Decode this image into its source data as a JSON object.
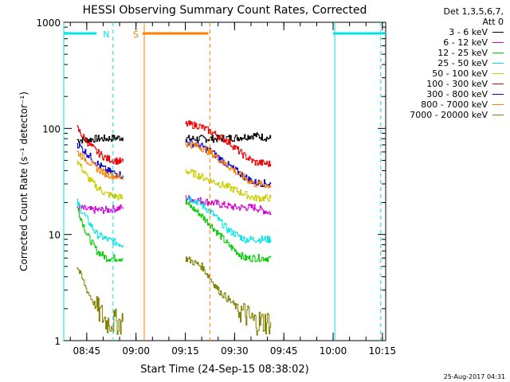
{
  "chart_data": {
    "type": "line",
    "title": "HESSI Observing Summary Count Rates, Corrected",
    "xlabel": "Start Time (24-Sep-15 08:38:02)",
    "ylabel": "Corrected Count Rate (s⁻¹ detector⁻¹)",
    "yscale": "log",
    "ylim": [
      1,
      1000
    ],
    "y_ticks": [
      "1",
      "10",
      "100",
      "1000"
    ],
    "x_range_minutes_after_08_38_02": [
      0,
      98
    ],
    "x_ticks": [
      "08:45",
      "09:00",
      "09:15",
      "09:30",
      "09:45",
      "10:00",
      "10:15"
    ],
    "x_tick_minutes": [
      7,
      22,
      37,
      52,
      67,
      82,
      97
    ],
    "legend_header": [
      "Det 1,3,5,6,7,",
      "Att 0"
    ],
    "series": [
      {
        "name": "3 - 6 keV",
        "color": "#000000",
        "segments": [
          [
            [
              4,
              78
            ],
            [
              7,
              78
            ],
            [
              10,
              80
            ],
            [
              13,
              80
            ],
            [
              18,
              82
            ]
          ],
          [
            [
              37,
              80
            ],
            [
              46,
              80
            ],
            [
              53,
              82
            ],
            [
              58,
              86
            ],
            [
              63,
              80
            ]
          ]
        ]
      },
      {
        "name": "6 - 12 keV",
        "color": "#d400d4",
        "segments": [
          [
            [
              4,
              18
            ],
            [
              8,
              17
            ],
            [
              13,
              17
            ],
            [
              18,
              18
            ]
          ],
          [
            [
              37,
              22
            ],
            [
              45,
              20
            ],
            [
              52,
              18
            ],
            [
              58,
              18
            ],
            [
              63,
              16
            ]
          ]
        ]
      },
      {
        "name": "12 - 25 keV",
        "color": "#00cc00",
        "segments": [
          [
            [
              4,
              18
            ],
            [
              7,
              10
            ],
            [
              10,
              7
            ],
            [
              13,
              6
            ],
            [
              18,
              6
            ]
          ],
          [
            [
              37,
              20
            ],
            [
              41,
              16
            ],
            [
              45,
              12
            ],
            [
              50,
              8
            ],
            [
              55,
              6
            ],
            [
              58,
              6
            ],
            [
              63,
              6
            ]
          ]
        ]
      },
      {
        "name": "25 - 50 keV",
        "color": "#00e5e5",
        "segments": [
          [
            [
              4,
              20
            ],
            [
              7,
              14
            ],
            [
              10,
              10
            ],
            [
              13,
              9
            ],
            [
              18,
              8
            ]
          ],
          [
            [
              37,
              23
            ],
            [
              41,
              20
            ],
            [
              45,
              16
            ],
            [
              50,
              11
            ],
            [
              55,
              9
            ],
            [
              58,
              9
            ],
            [
              63,
              9
            ]
          ]
        ]
      },
      {
        "name": "50 - 100 keV",
        "color": "#cccc00",
        "segments": [
          [
            [
              4,
              50
            ],
            [
              7,
              35
            ],
            [
              10,
              28
            ],
            [
              13,
              24
            ],
            [
              18,
              22
            ]
          ],
          [
            [
              37,
              40
            ],
            [
              41,
              36
            ],
            [
              45,
              32
            ],
            [
              50,
              28
            ],
            [
              55,
              24
            ],
            [
              58,
              22
            ],
            [
              63,
              22
            ]
          ]
        ]
      },
      {
        "name": "100 - 300 keV",
        "color": "#ee0000",
        "segments": [
          [
            [
              4,
              100
            ],
            [
              7,
              75
            ],
            [
              10,
              60
            ],
            [
              13,
              52
            ],
            [
              18,
              48
            ]
          ],
          [
            [
              37,
              110
            ],
            [
              41,
              106
            ],
            [
              45,
              92
            ],
            [
              50,
              75
            ],
            [
              55,
              55
            ],
            [
              58,
              48
            ],
            [
              63,
              46
            ]
          ]
        ]
      },
      {
        "name": "300 - 800 keV",
        "color": "#0000cc",
        "segments": [
          [
            [
              4,
              72
            ],
            [
              7,
              58
            ],
            [
              10,
              47
            ],
            [
              13,
              40
            ],
            [
              18,
              36
            ]
          ],
          [
            [
              37,
              75
            ],
            [
              41,
              70
            ],
            [
              45,
              60
            ],
            [
              50,
              45
            ],
            [
              55,
              35
            ],
            [
              58,
              31
            ],
            [
              63,
              30
            ]
          ]
        ]
      },
      {
        "name": "800 - 7000 keV",
        "color": "#ff7f00",
        "segments": [
          [
            [
              4,
              60
            ],
            [
              7,
              50
            ],
            [
              10,
              42
            ],
            [
              13,
              37
            ],
            [
              18,
              34
            ]
          ],
          [
            [
              37,
              72
            ],
            [
              41,
              68
            ],
            [
              45,
              58
            ],
            [
              50,
              44
            ],
            [
              55,
              34
            ],
            [
              58,
              30
            ],
            [
              63,
              29
            ]
          ]
        ]
      },
      {
        "name": "7000 - 20000 keV",
        "color": "#808000",
        "segments": [
          [
            [
              4,
              5
            ],
            [
              7,
              3
            ],
            [
              10,
              2
            ],
            [
              13,
              1.5
            ],
            [
              18,
              1.5
            ]
          ],
          [
            [
              37,
              6
            ],
            [
              42,
              5
            ],
            [
              47,
              3
            ],
            [
              53,
              2
            ],
            [
              58,
              1.5
            ],
            [
              63,
              1.5
            ]
          ]
        ]
      }
    ],
    "flags": [
      {
        "label": "N",
        "color": "#00e5e5",
        "bars": [
          [
            0,
            10
          ],
          [
            82,
            98
          ]
        ]
      },
      {
        "label": "S",
        "color": "#ff7f00",
        "bars": [
          [
            24,
            44
          ]
        ]
      }
    ],
    "vlines": [
      {
        "t": 0,
        "color": "#00e5e5",
        "dashed": false
      },
      {
        "t": 15,
        "color": "#00e5e5",
        "dashed": true
      },
      {
        "t": 24.5,
        "color": "#ff7f00",
        "dashed": false
      },
      {
        "t": 44.5,
        "color": "#ff7f00",
        "dashed": true
      },
      {
        "t": 82.5,
        "color": "#00e5e5",
        "dashed": false
      },
      {
        "t": 96.5,
        "color": "#00e5e5",
        "dashed": true
      }
    ]
  },
  "timestamp": "25-Aug-2017 04:31"
}
